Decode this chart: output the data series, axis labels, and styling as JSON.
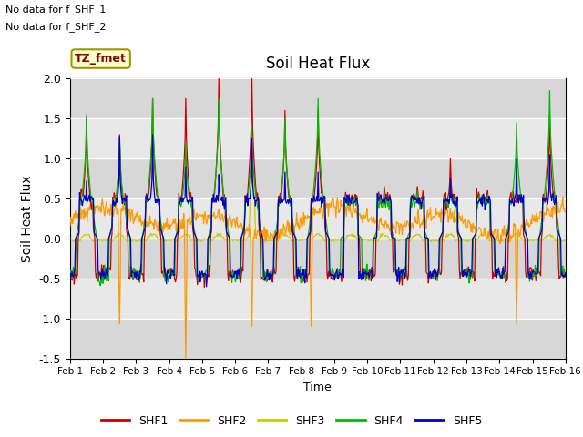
{
  "title": "Soil Heat Flux",
  "ylabel": "Soil Heat Flux",
  "xlabel": "Time",
  "ylim": [
    -1.5,
    2.0
  ],
  "text_no_data_1": "No data for f_SHF_1",
  "text_no_data_2": "No data for f_SHF_2",
  "tz_label": "TZ_fmet",
  "legend_entries": [
    "SHF1",
    "SHF2",
    "SHF3",
    "SHF4",
    "SHF5"
  ],
  "colors": {
    "SHF1": "#cc0000",
    "SHF2": "#ff9900",
    "SHF3": "#cccc00",
    "SHF4": "#00bb00",
    "SHF5": "#0000cc"
  },
  "xtick_labels": [
    "Feb 1",
    "Feb 2",
    "Feb 3",
    "Feb 4",
    "Feb 5",
    "Feb 6",
    "Feb 7",
    "Feb 8",
    "Feb 9",
    "Feb 10",
    "Feb 11",
    "Feb 12",
    "Feb 13",
    "Feb 14",
    "Feb 15",
    "Feb 16"
  ],
  "ytick_labels": [
    "-1.5",
    "-1.0",
    "-0.5",
    "0.0",
    "0.5",
    "1.0",
    "1.5",
    "2.0"
  ],
  "ytick_vals": [
    -1.5,
    -1.0,
    -0.5,
    0.0,
    0.5,
    1.0,
    1.5,
    2.0
  ],
  "background_color": "#e8e8e8",
  "band_color": "#d0d0d0"
}
